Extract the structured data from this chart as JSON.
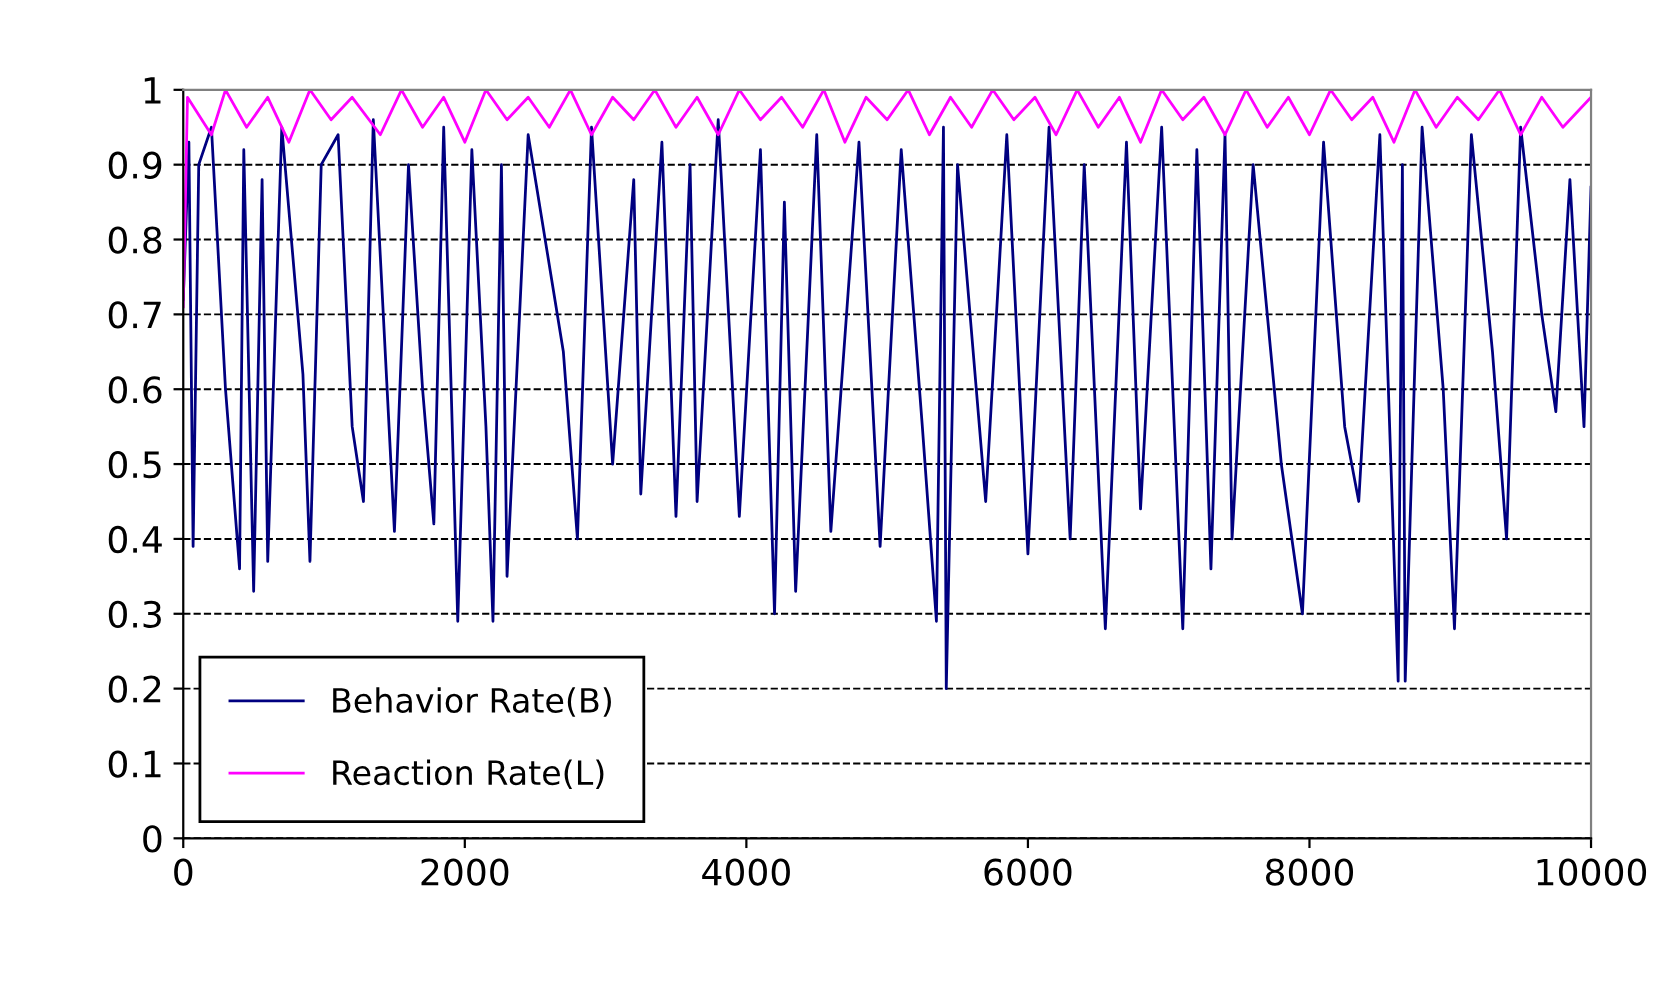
{
  "chart_data": {
    "type": "line",
    "xlim": [
      0,
      10000
    ],
    "xticks": [
      0,
      2000,
      4000,
      6000,
      8000,
      10000
    ],
    "ylim": [
      0,
      1
    ],
    "yticks": [
      0,
      0.1,
      0.2,
      0.3,
      0.4,
      0.5,
      0.6,
      0.7,
      0.8,
      0.9,
      1
    ],
    "grid": "y",
    "legend": "bottom left",
    "marker": "none",
    "line_style": "solid",
    "series": [
      {
        "name": "Behavior Rate(B)",
        "color": "#000080",
        "x": [
          0,
          40,
          70,
          110,
          200,
          300,
          400,
          430,
          500,
          560,
          600,
          700,
          850,
          900,
          980,
          1100,
          1200,
          1280,
          1350,
          1500,
          1600,
          1700,
          1780,
          1850,
          1950,
          2050,
          2150,
          2200,
          2260,
          2300,
          2450,
          2700,
          2800,
          2900,
          3050,
          3200,
          3250,
          3400,
          3500,
          3600,
          3650,
          3800,
          3950,
          4100,
          4200,
          4270,
          4350,
          4500,
          4600,
          4800,
          4950,
          5100,
          5250,
          5350,
          5400,
          5420,
          5500,
          5700,
          5850,
          6000,
          6150,
          6300,
          6400,
          6550,
          6700,
          6800,
          6950,
          7100,
          7200,
          7300,
          7400,
          7450,
          7600,
          7800,
          7950,
          8100,
          8250,
          8350,
          8500,
          8630,
          8660,
          8680,
          8800,
          8950,
          9030,
          9150,
          9300,
          9400,
          9500,
          9650,
          9750,
          9850,
          9950,
          10000
        ],
        "values": [
          0.72,
          0.93,
          0.39,
          0.9,
          0.95,
          0.6,
          0.36,
          0.92,
          0.33,
          0.88,
          0.37,
          0.95,
          0.62,
          0.37,
          0.9,
          0.94,
          0.55,
          0.45,
          0.96,
          0.41,
          0.9,
          0.6,
          0.42,
          0.95,
          0.29,
          0.92,
          0.55,
          0.29,
          0.9,
          0.35,
          0.94,
          0.65,
          0.4,
          0.95,
          0.5,
          0.88,
          0.46,
          0.93,
          0.43,
          0.9,
          0.45,
          0.96,
          0.43,
          0.92,
          0.3,
          0.85,
          0.33,
          0.94,
          0.41,
          0.93,
          0.39,
          0.92,
          0.55,
          0.29,
          0.95,
          0.2,
          0.9,
          0.45,
          0.94,
          0.38,
          0.95,
          0.4,
          0.9,
          0.28,
          0.93,
          0.44,
          0.95,
          0.28,
          0.92,
          0.36,
          0.94,
          0.4,
          0.9,
          0.5,
          0.3,
          0.93,
          0.55,
          0.45,
          0.94,
          0.21,
          0.9,
          0.21,
          0.95,
          0.6,
          0.28,
          0.94,
          0.65,
          0.4,
          0.95,
          0.7,
          0.57,
          0.88,
          0.55,
          0.87
        ]
      },
      {
        "name": "Reaction Rate(L)",
        "color": "#ff00ff",
        "x": [
          0,
          30,
          200,
          300,
          450,
          600,
          750,
          900,
          1050,
          1200,
          1400,
          1550,
          1700,
          1850,
          2000,
          2150,
          2300,
          2450,
          2600,
          2750,
          2900,
          3050,
          3200,
          3350,
          3500,
          3650,
          3800,
          3950,
          4100,
          4250,
          4400,
          4550,
          4700,
          4850,
          5000,
          5150,
          5300,
          5450,
          5600,
          5750,
          5900,
          6050,
          6200,
          6350,
          6500,
          6650,
          6800,
          6950,
          7100,
          7250,
          7400,
          7550,
          7700,
          7850,
          8000,
          8150,
          8300,
          8450,
          8600,
          8750,
          8900,
          9050,
          9200,
          9350,
          9500,
          9650,
          9800,
          10000
        ],
        "values": [
          0.71,
          0.99,
          0.94,
          1.0,
          0.95,
          0.99,
          0.93,
          1.0,
          0.96,
          0.99,
          0.94,
          1.0,
          0.95,
          0.99,
          0.93,
          1.0,
          0.96,
          0.99,
          0.95,
          1.0,
          0.94,
          0.99,
          0.96,
          1.0,
          0.95,
          0.99,
          0.94,
          1.0,
          0.96,
          0.99,
          0.95,
          1.0,
          0.93,
          0.99,
          0.96,
          1.0,
          0.94,
          0.99,
          0.95,
          1.0,
          0.96,
          0.99,
          0.94,
          1.0,
          0.95,
          0.99,
          0.93,
          1.0,
          0.96,
          0.99,
          0.94,
          1.0,
          0.95,
          0.99,
          0.94,
          1.0,
          0.96,
          0.99,
          0.93,
          1.0,
          0.95,
          0.99,
          0.96,
          1.0,
          0.94,
          0.99,
          0.95,
          0.99
        ]
      }
    ]
  }
}
